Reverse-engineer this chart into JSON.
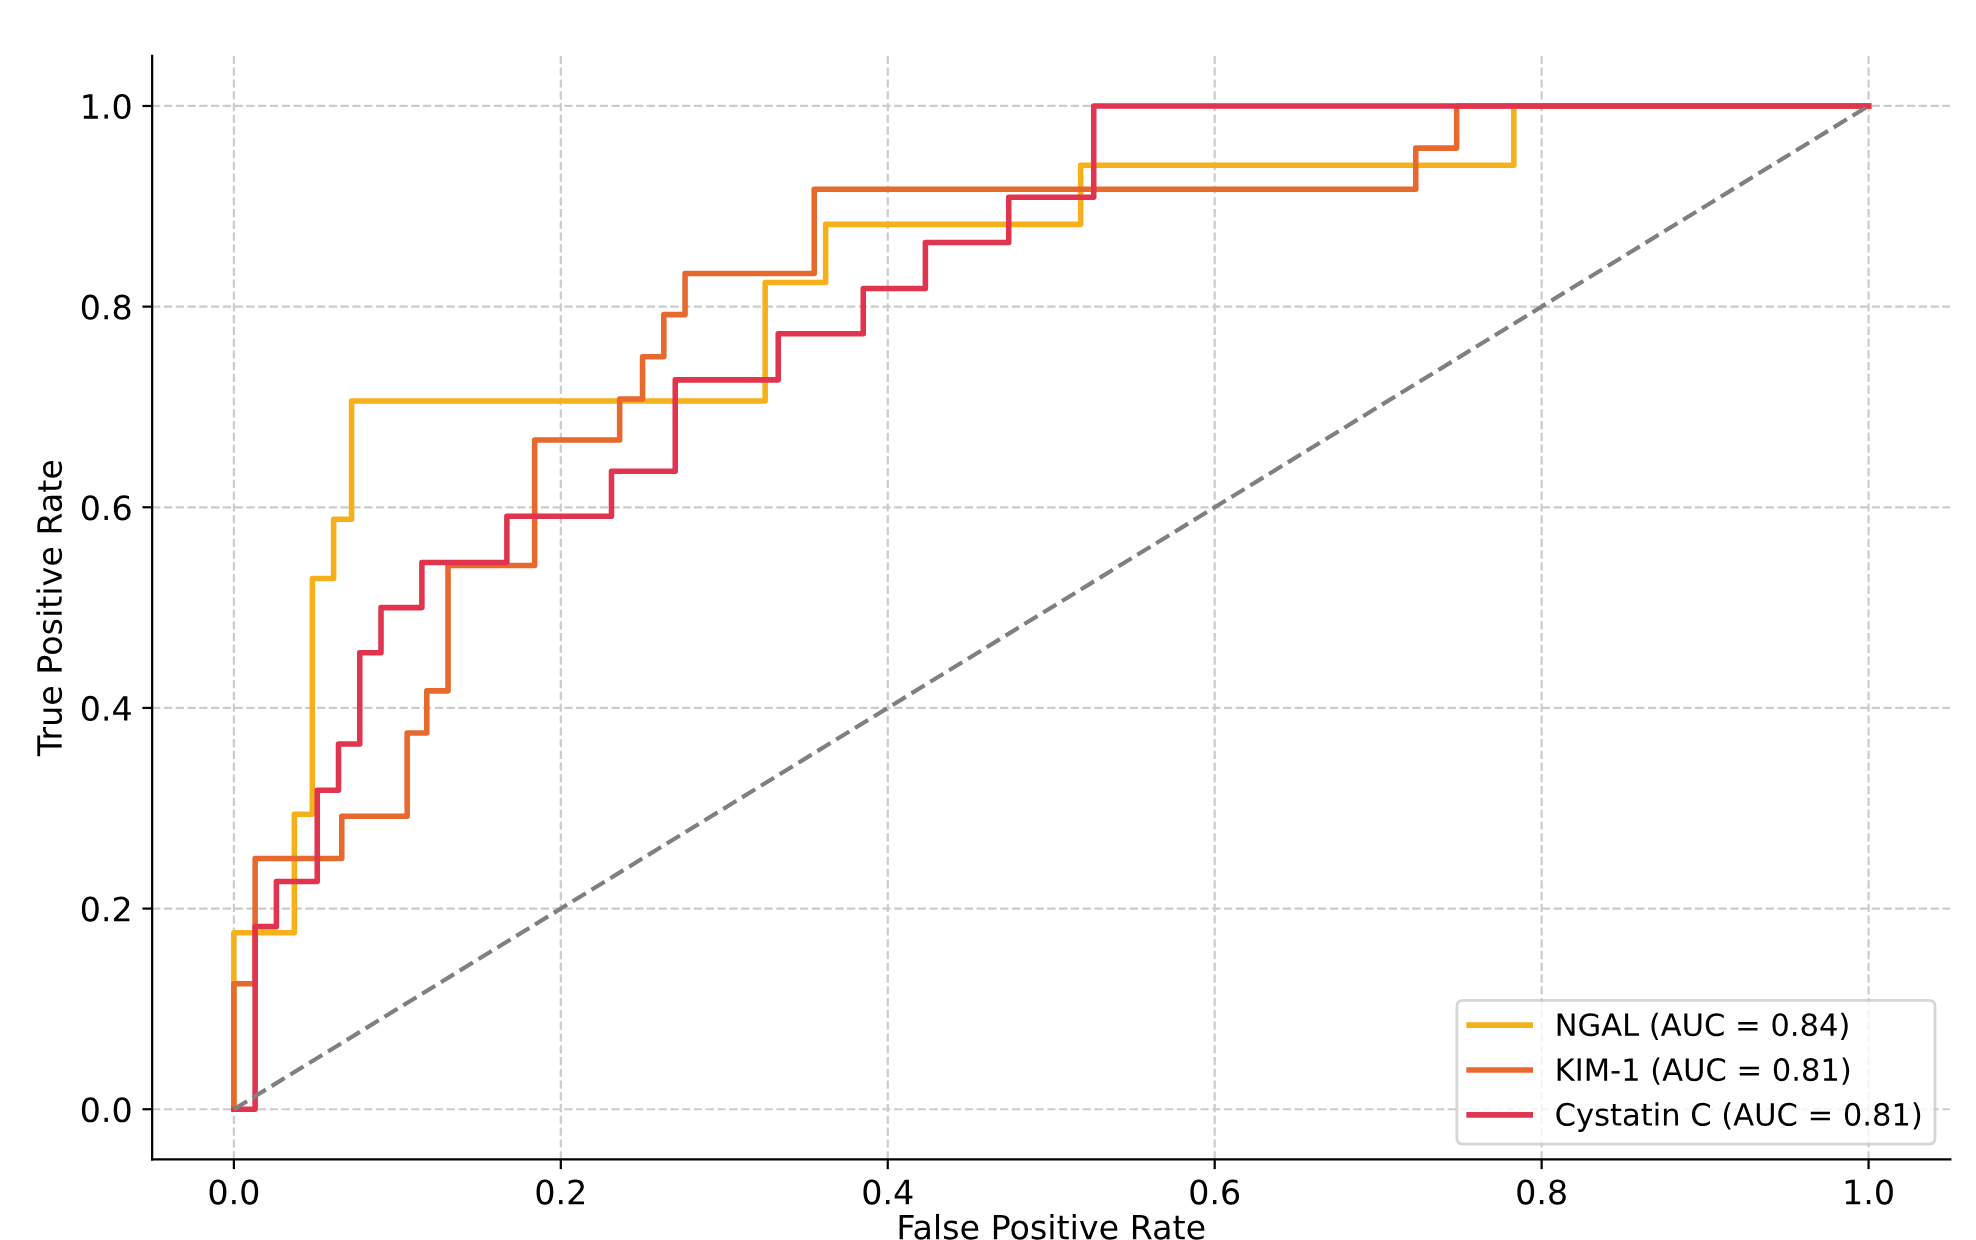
{
  "chart_data": {
    "type": "step",
    "xlabel": "False Positive Rate",
    "ylabel": "True Positive Rate",
    "xlim": [
      -0.05,
      1.05
    ],
    "ylim": [
      -0.05,
      1.05
    ],
    "xticks": [
      {
        "value": 0,
        "label": "0.0"
      },
      0.2,
      0.4,
      0.6,
      0.8,
      {
        "value": 1,
        "label": "1.0"
      }
    ],
    "yticks": [
      {
        "value": 0,
        "label": "0.0"
      },
      0.2,
      0.4,
      0.6,
      0.8,
      {
        "value": 1,
        "label": "1.0"
      }
    ],
    "grid": true,
    "legend": "bottom right",
    "series": [
      {
        "name": "NGAL (AUC = 0.84)",
        "color": "#f5b01a",
        "x": [
          0,
          0,
          0.037,
          0.037,
          0.048,
          0.048,
          0.061,
          0.061,
          0.072,
          0.072,
          0.325,
          0.325,
          0.362,
          0.362,
          0.518,
          0.518,
          0.783,
          0.783,
          1.0
        ],
        "values": [
          0,
          0.176,
          0.176,
          0.294,
          0.294,
          0.529,
          0.529,
          0.588,
          0.588,
          0.706,
          0.706,
          0.824,
          0.824,
          0.882,
          0.882,
          0.941,
          0.941,
          1.0,
          1.0
        ]
      },
      {
        "name": "KIM-1 (AUC = 0.81)",
        "color": "#e8692e",
        "x": [
          0,
          0,
          0.013,
          0.013,
          0.066,
          0.066,
          0.106,
          0.106,
          0.118,
          0.118,
          0.131,
          0.131,
          0.184,
          0.184,
          0.236,
          0.236,
          0.25,
          0.25,
          0.263,
          0.263,
          0.276,
          0.276,
          0.355,
          0.355,
          0.723,
          0.723,
          0.748,
          0.748,
          1.0
        ],
        "values": [
          0,
          0.125,
          0.125,
          0.25,
          0.25,
          0.292,
          0.292,
          0.375,
          0.375,
          0.417,
          0.417,
          0.542,
          0.542,
          0.667,
          0.667,
          0.708,
          0.708,
          0.75,
          0.75,
          0.792,
          0.792,
          0.833,
          0.833,
          0.917,
          0.917,
          0.958,
          0.958,
          1.0,
          1.0
        ]
      },
      {
        "name": "Cystatin C (AUC = 0.81)",
        "color": "#e0344f",
        "x": [
          0,
          0.013,
          0.013,
          0.026,
          0.026,
          0.051,
          0.051,
          0.064,
          0.064,
          0.077,
          0.077,
          0.09,
          0.09,
          0.115,
          0.115,
          0.167,
          0.167,
          0.231,
          0.231,
          0.27,
          0.27,
          0.333,
          0.333,
          0.385,
          0.385,
          0.423,
          0.423,
          0.474,
          0.474,
          0.526,
          0.526,
          1.0
        ],
        "values": [
          0,
          0,
          0.182,
          0.182,
          0.227,
          0.227,
          0.318,
          0.318,
          0.364,
          0.364,
          0.455,
          0.455,
          0.5,
          0.5,
          0.545,
          0.545,
          0.591,
          0.591,
          0.636,
          0.636,
          0.727,
          0.727,
          0.773,
          0.773,
          0.818,
          0.818,
          0.864,
          0.864,
          0.909,
          0.909,
          1.0,
          1.0
        ]
      },
      {
        "type": "line",
        "color": "#808080",
        "line_style": "dashed",
        "x": [
          0,
          1
        ],
        "values": [
          0,
          1
        ]
      }
    ]
  }
}
